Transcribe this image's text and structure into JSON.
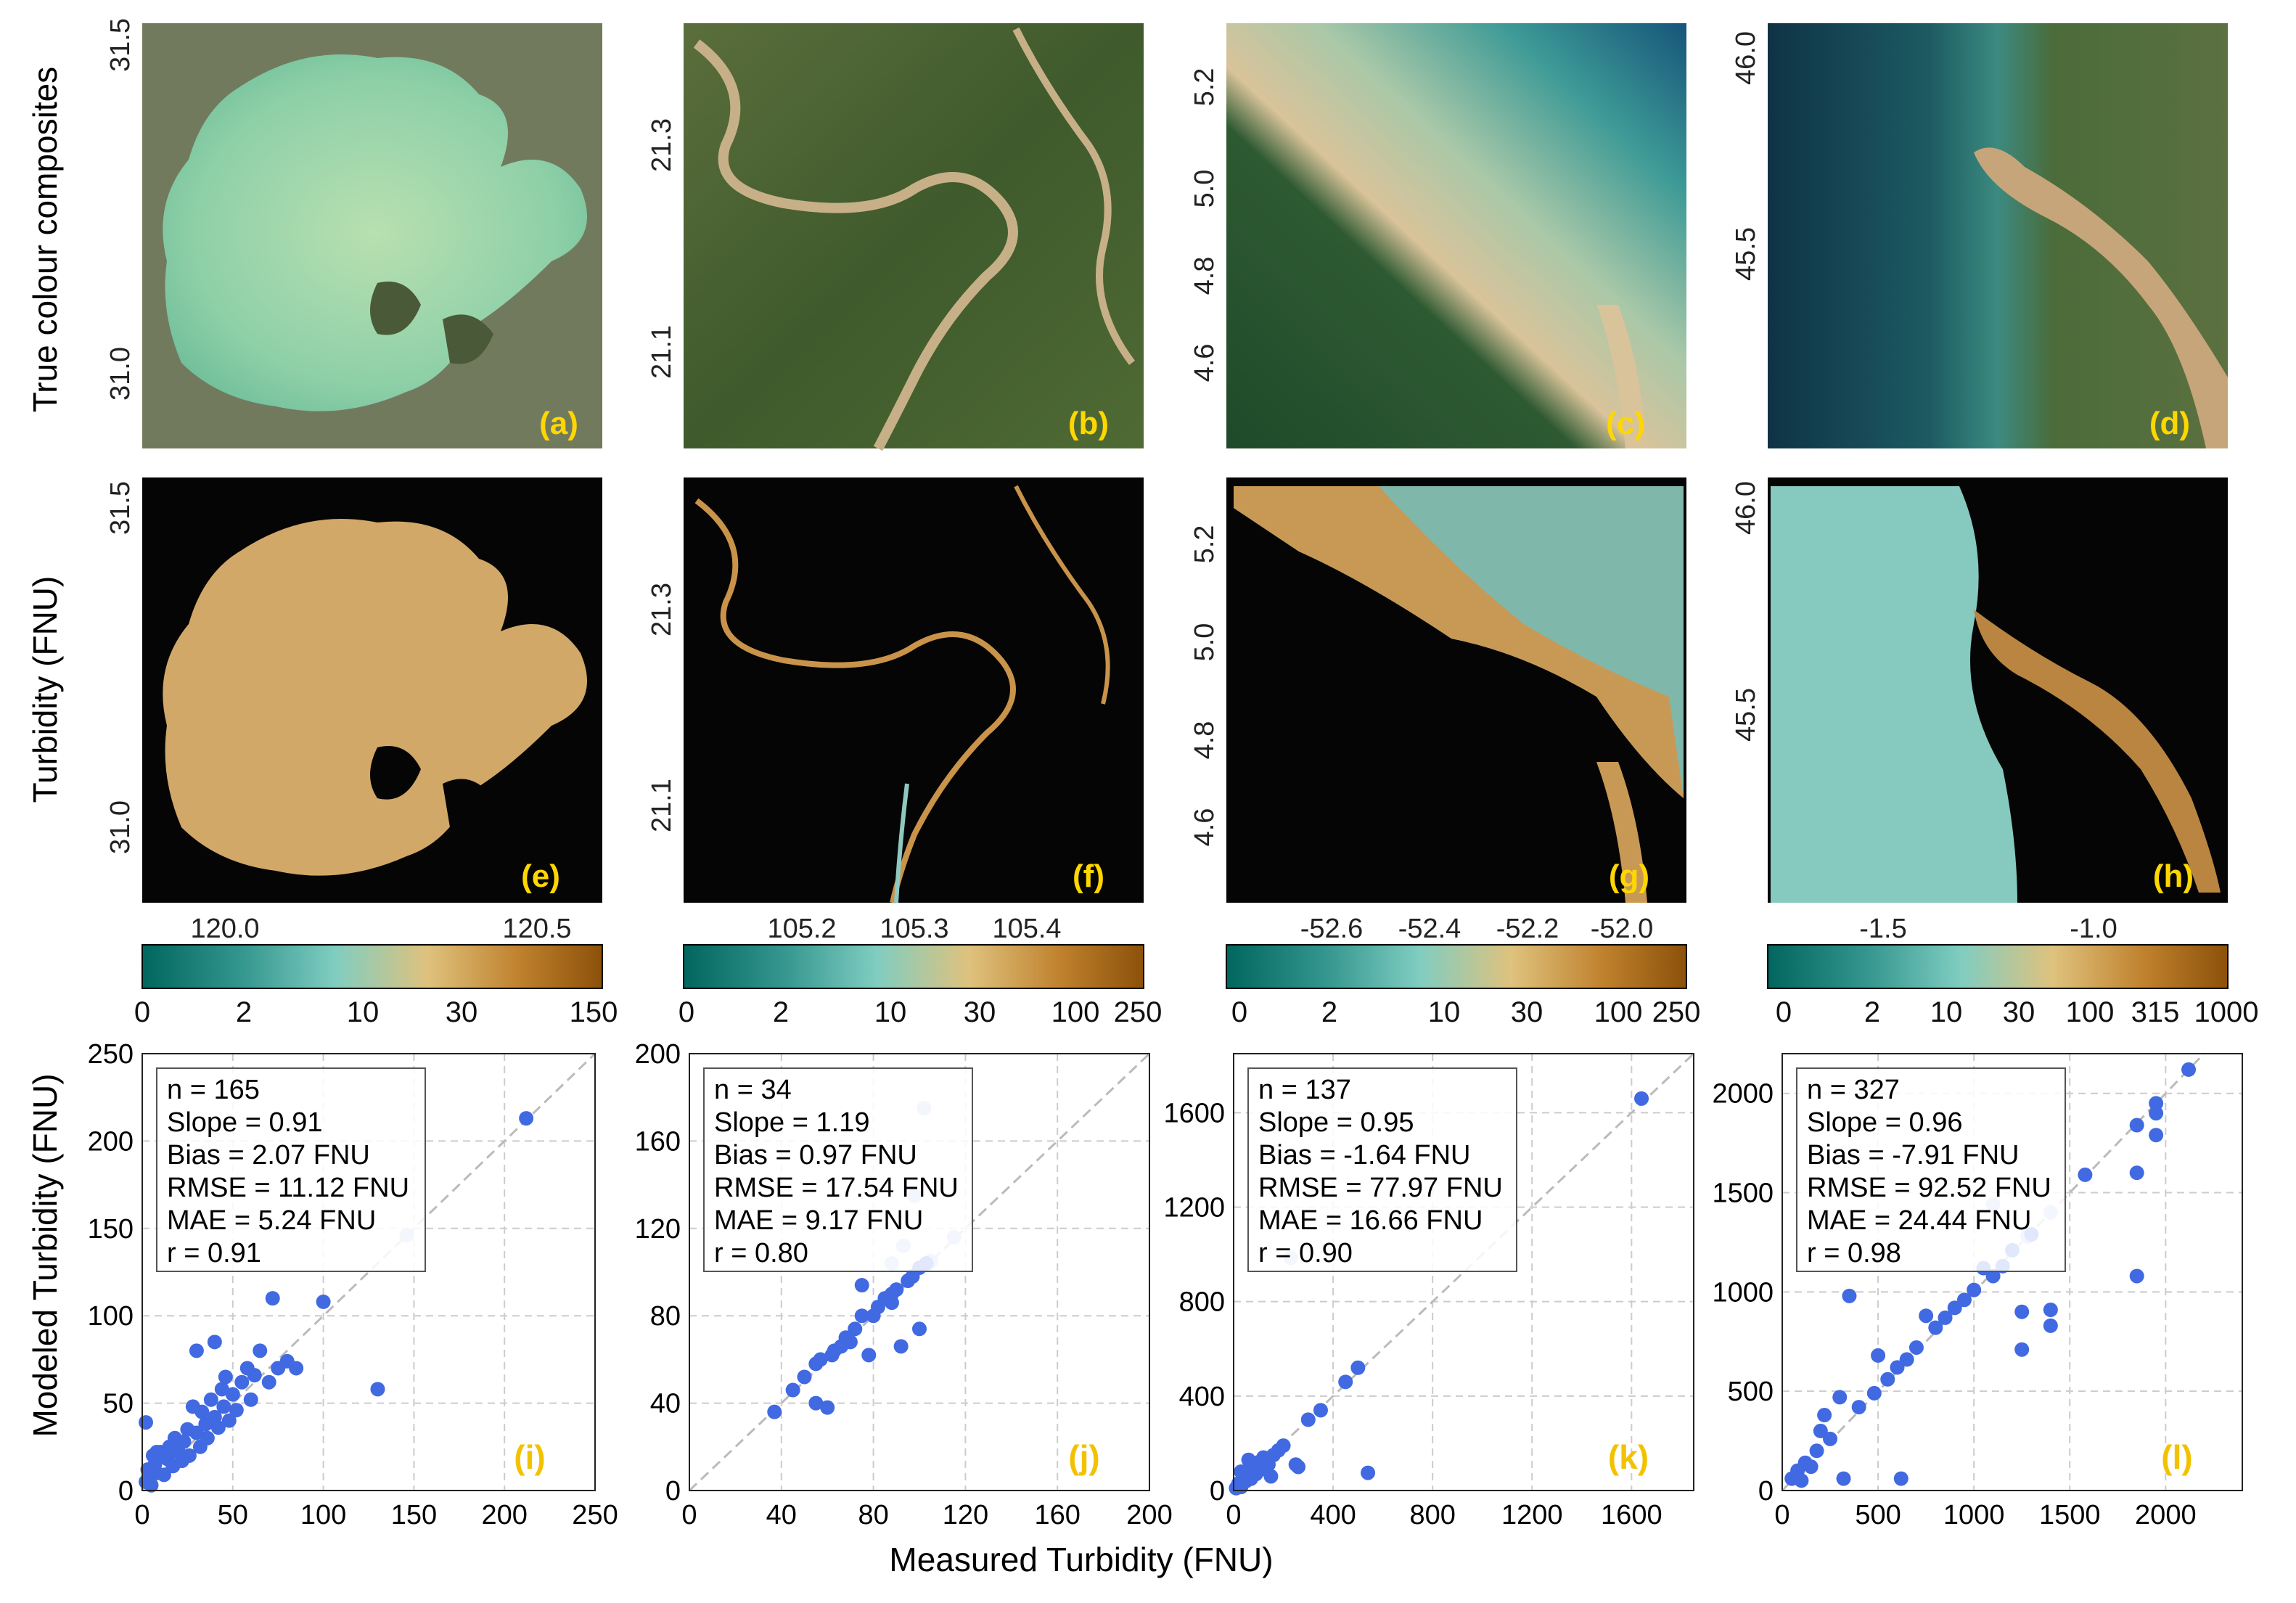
{
  "row_labels": {
    "true_colour": "True colour composites",
    "turbidity": "Turbidity (FNU)"
  },
  "colors": {
    "marker": "#4169e1",
    "panel_letter": "#ffd700",
    "cmap": [
      "#01665e",
      "#35978f",
      "#80cdc1",
      "#dfc27d",
      "#bf812d",
      "#8c510a"
    ]
  },
  "map_panels": [
    {
      "rgb_letter": "(a)",
      "turb_letter": "(e)",
      "lat_ticks": [
        "31.5",
        "31.0"
      ],
      "lon_ticks": [
        "120.0",
        "120.5"
      ],
      "colorbar_ticks": [
        "0",
        "2",
        "10",
        "30",
        "150"
      ]
    },
    {
      "rgb_letter": "(b)",
      "turb_letter": "(f)",
      "lat_ticks": [
        "21.3",
        "21.1"
      ],
      "lon_ticks": [
        "105.2",
        "105.3",
        "105.4"
      ],
      "colorbar_ticks": [
        "0",
        "2",
        "10",
        "30",
        "100",
        "250"
      ]
    },
    {
      "rgb_letter": "(c)",
      "turb_letter": "(g)",
      "lat_ticks": [
        "5.2",
        "5.0",
        "4.8",
        "4.6"
      ],
      "lon_ticks": [
        "-52.6",
        "-52.4",
        "-52.2",
        "-52.0"
      ],
      "colorbar_ticks": [
        "0",
        "2",
        "10",
        "30",
        "100",
        "250"
      ]
    },
    {
      "rgb_letter": "(d)",
      "turb_letter": "(h)",
      "lat_ticks": [
        "46.0",
        "45.5"
      ],
      "lon_ticks": [
        "-1.5",
        "-1.0"
      ],
      "colorbar_ticks": [
        "0",
        "2",
        "10",
        "30",
        "100",
        "315",
        "1000"
      ]
    }
  ],
  "scatter_axes": {
    "xlabel": "Measured Turbidity (FNU)",
    "ylabel": "Modeled Turbidity (FNU)"
  },
  "chart_data": [
    {
      "type": "scatter",
      "letter": "(i)",
      "xlim": [
        0,
        250
      ],
      "ylim": [
        0,
        250
      ],
      "xticks": [
        0,
        50,
        100,
        150,
        200,
        250
      ],
      "yticks": [
        0,
        50,
        100,
        150,
        200,
        250
      ],
      "stats": [
        "n = 165",
        "Slope = 0.91",
        "Bias = 2.07 FNU",
        "RMSE = 11.12 FNU",
        "MAE = 5.24 FNU",
        "r = 0.91"
      ],
      "points": [
        [
          2,
          5
        ],
        [
          3,
          12
        ],
        [
          4,
          8
        ],
        [
          5,
          3
        ],
        [
          6,
          20
        ],
        [
          7,
          15
        ],
        [
          8,
          10
        ],
        [
          10,
          22
        ],
        [
          12,
          9
        ],
        [
          14,
          18
        ],
        [
          15,
          25
        ],
        [
          17,
          14
        ],
        [
          18,
          30
        ],
        [
          20,
          22
        ],
        [
          22,
          17
        ],
        [
          23,
          28
        ],
        [
          25,
          35
        ],
        [
          26,
          20
        ],
        [
          28,
          48
        ],
        [
          30,
          33
        ],
        [
          32,
          25
        ],
        [
          33,
          45
        ],
        [
          35,
          38
        ],
        [
          36,
          30
        ],
        [
          38,
          52
        ],
        [
          40,
          42
        ],
        [
          40,
          85
        ],
        [
          42,
          36
        ],
        [
          44,
          58
        ],
        [
          45,
          48
        ],
        [
          46,
          65
        ],
        [
          48,
          40
        ],
        [
          50,
          55
        ],
        [
          52,
          46
        ],
        [
          55,
          62
        ],
        [
          58,
          70
        ],
        [
          60,
          52
        ],
        [
          62,
          66
        ],
        [
          65,
          80
        ],
        [
          70,
          62
        ],
        [
          72,
          110
        ],
        [
          75,
          70
        ],
        [
          80,
          74
        ],
        [
          85,
          70
        ],
        [
          100,
          108
        ],
        [
          130,
          58
        ],
        [
          212,
          213
        ],
        [
          2,
          39
        ],
        [
          8,
          22
        ],
        [
          30,
          80
        ]
      ],
      "faint_points": [
        [
          146,
          146
        ]
      ]
    },
    {
      "type": "scatter",
      "letter": "(j)",
      "xlim": [
        0,
        200
      ],
      "ylim": [
        0,
        200
      ],
      "xticks": [
        0,
        40,
        80,
        120,
        160,
        200
      ],
      "yticks": [
        0,
        40,
        80,
        120,
        160,
        200
      ],
      "stats": [
        "n = 34",
        "Slope = 1.19",
        "Bias = 0.97 FNU",
        "RMSE = 17.54 FNU",
        "MAE = 9.17 FNU",
        "r = 0.80"
      ],
      "points": [
        [
          37,
          36
        ],
        [
          45,
          46
        ],
        [
          50,
          52
        ],
        [
          55,
          40
        ],
        [
          57,
          60
        ],
        [
          60,
          38
        ],
        [
          63,
          64
        ],
        [
          66,
          66
        ],
        [
          70,
          68
        ],
        [
          72,
          74
        ],
        [
          75,
          94
        ],
        [
          78,
          62
        ],
        [
          80,
          80
        ],
        [
          82,
          84
        ],
        [
          85,
          88
        ],
        [
          88,
          90
        ],
        [
          90,
          92
        ],
        [
          92,
          66
        ],
        [
          95,
          96
        ],
        [
          97,
          98
        ],
        [
          100,
          74
        ],
        [
          100,
          102
        ],
        [
          103,
          104
        ],
        [
          75,
          80
        ],
        [
          88,
          86
        ],
        [
          62,
          62
        ],
        [
          68,
          70
        ],
        [
          55,
          58
        ]
      ],
      "faint_points": [
        [
          102,
          175
        ],
        [
          98,
          135
        ],
        [
          88,
          104
        ],
        [
          93,
          112
        ],
        [
          105,
          105
        ],
        [
          115,
          116
        ]
      ]
    },
    {
      "type": "scatter",
      "letter": "(k)",
      "xlim": [
        0,
        1850
      ],
      "ylim": [
        0,
        1850
      ],
      "xticks": [
        0,
        400,
        800,
        1200,
        1600
      ],
      "yticks": [
        0,
        400,
        800,
        1200,
        1600
      ],
      "stats": [
        "n = 137",
        "Slope = 0.95",
        "Bias = -1.64 FNU",
        "RMSE = 77.97 FNU",
        "MAE = 16.66 FNU",
        "r = 0.90"
      ],
      "points": [
        [
          10,
          10
        ],
        [
          20,
          30
        ],
        [
          30,
          15
        ],
        [
          40,
          60
        ],
        [
          50,
          40
        ],
        [
          60,
          80
        ],
        [
          70,
          50
        ],
        [
          80,
          100
        ],
        [
          90,
          70
        ],
        [
          100,
          120
        ],
        [
          110,
          90
        ],
        [
          120,
          140
        ],
        [
          140,
          110
        ],
        [
          160,
          150
        ],
        [
          180,
          170
        ],
        [
          200,
          190
        ],
        [
          250,
          110
        ],
        [
          260,
          100
        ],
        [
          300,
          300
        ],
        [
          350,
          340
        ],
        [
          450,
          460
        ],
        [
          500,
          520
        ],
        [
          540,
          75
        ],
        [
          1640,
          1660
        ],
        [
          30,
          80
        ],
        [
          60,
          130
        ],
        [
          150,
          60
        ]
      ],
      "faint_points": [
        [
          230,
          985
        ]
      ]
    },
    {
      "type": "scatter",
      "letter": "(l)",
      "xlim": [
        0,
        2400
      ],
      "ylim": [
        0,
        2200
      ],
      "xticks": [
        0,
        500,
        1000,
        1500,
        2000
      ],
      "yticks": [
        0,
        500,
        1000,
        1500,
        2000
      ],
      "stats": [
        "n = 327",
        "Slope = 0.96",
        "Bias = -7.91 FNU",
        "RMSE = 92.52 FNU",
        "MAE = 24.44 FNU",
        "r = 0.98"
      ],
      "points": [
        [
          50,
          60
        ],
        [
          80,
          100
        ],
        [
          100,
          50
        ],
        [
          120,
          140
        ],
        [
          150,
          120
        ],
        [
          180,
          200
        ],
        [
          200,
          300
        ],
        [
          220,
          380
        ],
        [
          250,
          260
        ],
        [
          300,
          470
        ],
        [
          320,
          60
        ],
        [
          350,
          980
        ],
        [
          400,
          420
        ],
        [
          480,
          490
        ],
        [
          500,
          680
        ],
        [
          550,
          560
        ],
        [
          600,
          620
        ],
        [
          620,
          60
        ],
        [
          650,
          660
        ],
        [
          700,
          720
        ],
        [
          750,
          880
        ],
        [
          800,
          820
        ],
        [
          850,
          870
        ],
        [
          900,
          920
        ],
        [
          950,
          960
        ],
        [
          1000,
          1010
        ],
        [
          1050,
          1120
        ],
        [
          1100,
          1080
        ],
        [
          1150,
          1130
        ],
        [
          1200,
          1210
        ],
        [
          1250,
          900
        ],
        [
          1250,
          710
        ],
        [
          1300,
          1290
        ],
        [
          1400,
          830
        ],
        [
          1400,
          910
        ],
        [
          1580,
          1590
        ],
        [
          1850,
          1080
        ],
        [
          1850,
          1600
        ],
        [
          1850,
          1840
        ],
        [
          1950,
          1790
        ],
        [
          1950,
          1900
        ],
        [
          1950,
          1950
        ],
        [
          2120,
          2120
        ]
      ],
      "faint_points": [
        [
          1100,
          1440
        ],
        [
          1280,
          1280
        ],
        [
          1400,
          1400
        ]
      ]
    }
  ]
}
